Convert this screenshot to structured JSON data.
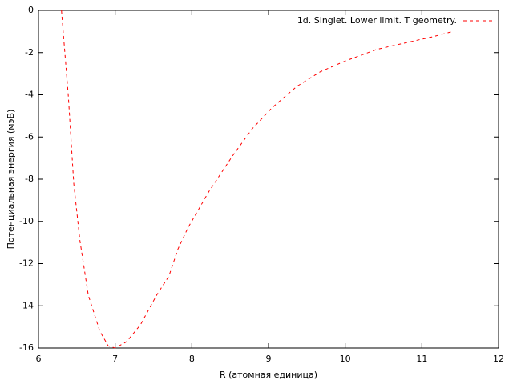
{
  "chart_data": {
    "type": "line",
    "x_label": "R (атомная единица)",
    "y_label": "Потенциальная энергия (мэВ)",
    "xlim": [
      6,
      12
    ],
    "xticks": [
      6,
      7,
      8,
      9,
      10,
      11,
      12
    ],
    "ylim": [
      -16,
      0
    ],
    "yticks": [
      -16,
      -14,
      -12,
      -10,
      -8,
      -6,
      -4,
      -2,
      0
    ],
    "legend": "top right",
    "dashed": true,
    "x": [
      6.3,
      6.39,
      6.46,
      6.54,
      6.65,
      6.8,
      6.91,
      7.0,
      7.15,
      7.33,
      7.54,
      7.7,
      7.82,
      7.95,
      8.22,
      8.53,
      8.79,
      9.05,
      9.37,
      9.68,
      10.0,
      10.41,
      10.83,
      11.14,
      11.4
    ],
    "series": [
      {
        "name": "1d. Singlet. Lower limit. T geometry.",
        "color": "#ff0000",
        "values": [
          0,
          -4.1,
          -8.2,
          -10.9,
          -13.5,
          -15.2,
          -15.9,
          -16.0,
          -15.7,
          -14.9,
          -13.5,
          -12.6,
          -11.3,
          -10.3,
          -8.6,
          -6.9,
          -5.6,
          -4.6,
          -3.6,
          -2.9,
          -2.4,
          -1.85,
          -1.5,
          -1.25,
          -1.0
        ]
      }
    ]
  }
}
